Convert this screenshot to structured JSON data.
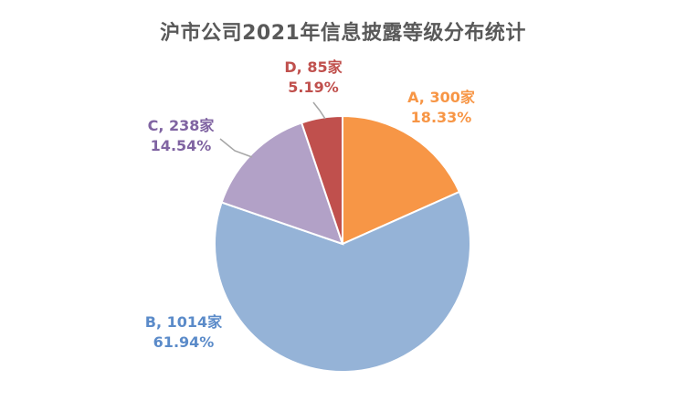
{
  "chart_data": {
    "type": "pie",
    "title": "沪市公司2021年信息披露等级分布统计",
    "categories": [
      "A",
      "B",
      "C",
      "D"
    ],
    "values": [
      300,
      1014,
      238,
      85
    ],
    "unit": "家",
    "percentages": [
      "18.33%",
      "61.94%",
      "14.54%",
      "5.19%"
    ],
    "labels": [
      "A, 300家",
      "B, 1014家",
      "C, 238家",
      "D, 85家"
    ],
    "colors": [
      "#F79646",
      "#95B3D7",
      "#B2A1C7",
      "#C0504D"
    ],
    "label_colors": [
      "#F79646",
      "#5B8BC9",
      "#8064A2",
      "#C0504D"
    ]
  }
}
